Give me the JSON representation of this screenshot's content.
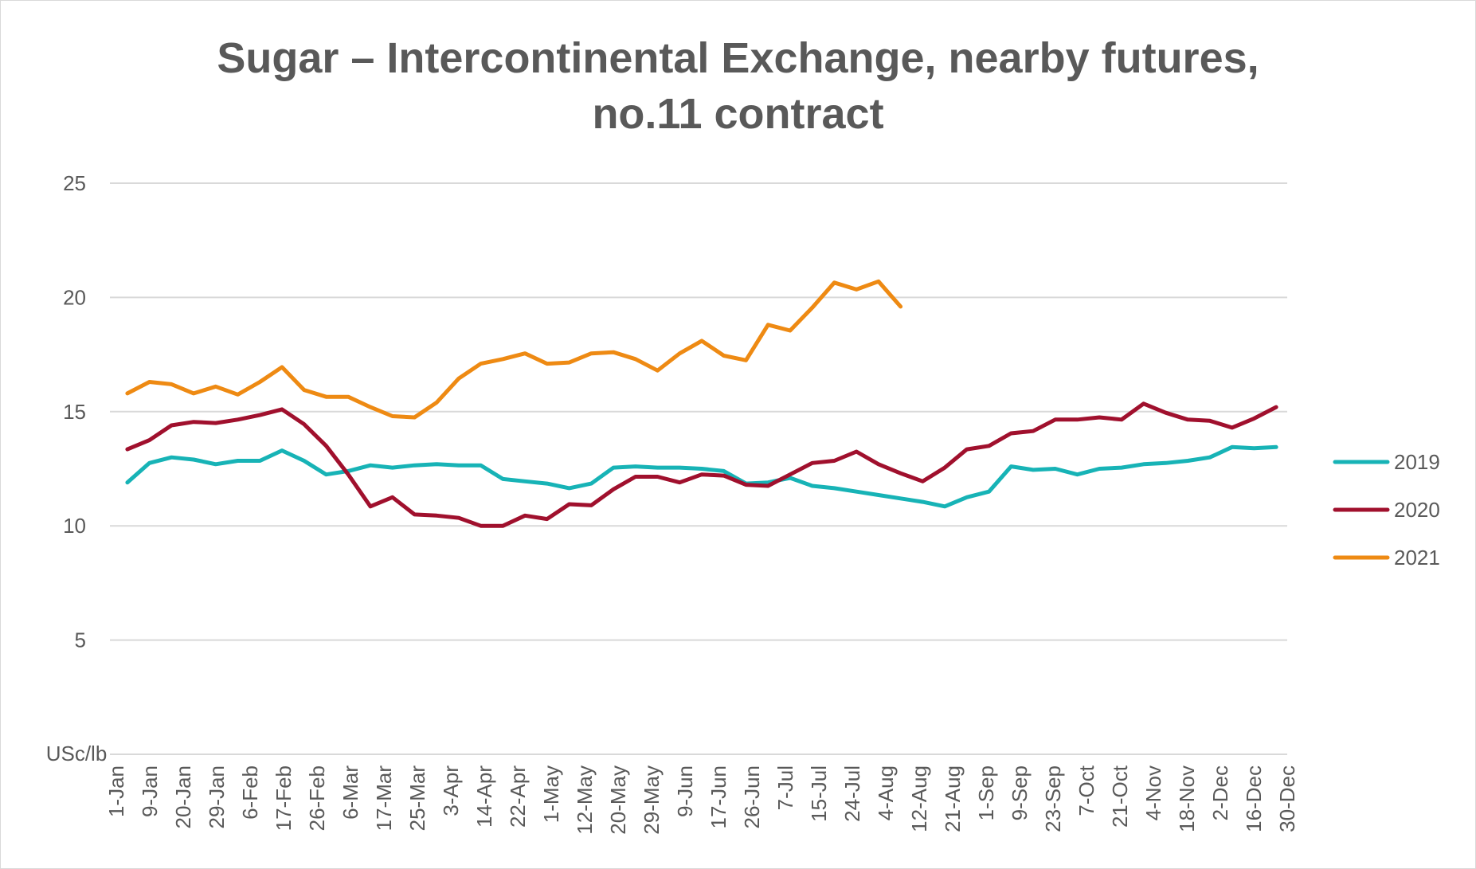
{
  "chart_data": {
    "type": "line",
    "title_line1": "Sugar – Intercontinental Exchange, nearby futures,",
    "title_line2": "no.11 contract",
    "ylabel": "USc/lb",
    "ylim": [
      0,
      25
    ],
    "yticks": [
      "",
      "5",
      "10",
      "15",
      "20",
      "25"
    ],
    "grid": true,
    "legend_position": "right",
    "x_tick_labels": [
      "1-Jan",
      "9-Jan",
      "20-Jan",
      "29-Jan",
      "6-Feb",
      "17-Feb",
      "26-Feb",
      "6-Mar",
      "17-Mar",
      "25-Mar",
      "3-Apr",
      "14-Apr",
      "22-Apr",
      "1-May",
      "12-May",
      "20-May",
      "29-May",
      "9-Jun",
      "17-Jun",
      "26-Jun",
      "7-Jul",
      "15-Jul",
      "24-Jul",
      "4-Aug",
      "12-Aug",
      "21-Aug",
      "1-Sep",
      "9-Sep",
      "23-Sep",
      "7-Oct",
      "21-Oct",
      "4-Nov",
      "18-Nov",
      "2-Dec",
      "16-Dec",
      "30-Dec"
    ],
    "series": [
      {
        "name": "2019",
        "color": "#17B3B6",
        "values": [
          11.9,
          12.75,
          13.0,
          12.9,
          12.7,
          12.85,
          12.85,
          13.3,
          12.85,
          12.25,
          12.4,
          12.65,
          12.55,
          12.65,
          12.7,
          12.65,
          12.65,
          12.05,
          11.95,
          11.85,
          11.65,
          11.85,
          12.55,
          12.6,
          12.55,
          12.55,
          12.5,
          12.4,
          11.85,
          11.9,
          12.1,
          11.75,
          11.65,
          11.5,
          11.35,
          11.2,
          11.05,
          10.85,
          11.25,
          11.5,
          12.6,
          12.45,
          12.5,
          12.25,
          12.5,
          12.55,
          12.7,
          12.75,
          12.85,
          13.0,
          13.45,
          13.4,
          13.45
        ]
      },
      {
        "name": "2020",
        "color": "#A0102D",
        "values": [
          13.35,
          13.75,
          14.4,
          14.55,
          14.5,
          14.65,
          14.85,
          15.1,
          14.45,
          13.5,
          12.25,
          10.85,
          11.25,
          10.5,
          10.45,
          10.35,
          10.0,
          10.0,
          10.45,
          10.3,
          10.95,
          10.9,
          11.6,
          12.15,
          12.15,
          11.9,
          12.25,
          12.2,
          11.8,
          11.75,
          12.25,
          12.75,
          12.85,
          13.25,
          12.7,
          12.3,
          11.95,
          12.55,
          13.35,
          13.5,
          14.05,
          14.15,
          14.65,
          14.65,
          14.75,
          14.65,
          15.35,
          14.95,
          14.65,
          14.6,
          14.3,
          14.7,
          15.2
        ]
      },
      {
        "name": "2021",
        "color": "#EE8A13",
        "values": [
          15.8,
          16.3,
          16.2,
          15.8,
          16.1,
          15.75,
          16.3,
          16.95,
          15.95,
          15.65,
          15.65,
          15.2,
          14.8,
          14.75,
          15.4,
          16.45,
          17.1,
          17.3,
          17.55,
          17.1,
          17.15,
          17.55,
          17.6,
          17.3,
          16.8,
          17.55,
          18.1,
          17.45,
          17.25,
          18.8,
          18.55,
          19.55,
          20.65,
          20.35,
          20.7,
          19.6
        ]
      }
    ]
  }
}
